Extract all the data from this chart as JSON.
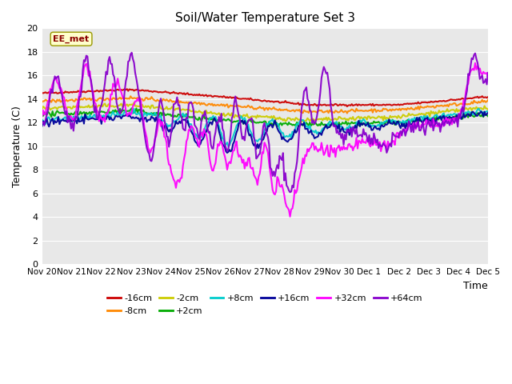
{
  "title": "Soil/Water Temperature Set 3",
  "xlabel": "Time",
  "ylabel": "Temperature (C)",
  "ylim": [
    0,
    20
  ],
  "yticks": [
    0,
    2,
    4,
    6,
    8,
    10,
    12,
    14,
    16,
    18,
    20
  ],
  "xtick_labels": [
    "Nov 20",
    "Nov 21",
    "Nov 22",
    "Nov 23",
    "Nov 24",
    "Nov 25",
    "Nov 26",
    "Nov 27",
    "Nov 28",
    "Nov 29",
    "Nov 30",
    "Dec 1",
    "Dec 2",
    "Dec 3",
    "Dec 4",
    "Dec 5"
  ],
  "annotation_label": "EE_met",
  "background_color": "#e8e8e8",
  "lines": {
    "-16cm": {
      "color": "#cc0000",
      "lw": 1.5
    },
    "-8cm": {
      "color": "#ff8800",
      "lw": 1.5
    },
    "-2cm": {
      "color": "#cccc00",
      "lw": 1.5
    },
    "+2cm": {
      "color": "#00aa00",
      "lw": 1.5
    },
    "+8cm": {
      "color": "#00cccc",
      "lw": 1.5
    },
    "+16cm": {
      "color": "#000099",
      "lw": 1.5
    },
    "+32cm": {
      "color": "#ff00ff",
      "lw": 1.5
    },
    "+64cm": {
      "color": "#8800cc",
      "lw": 1.5
    }
  }
}
